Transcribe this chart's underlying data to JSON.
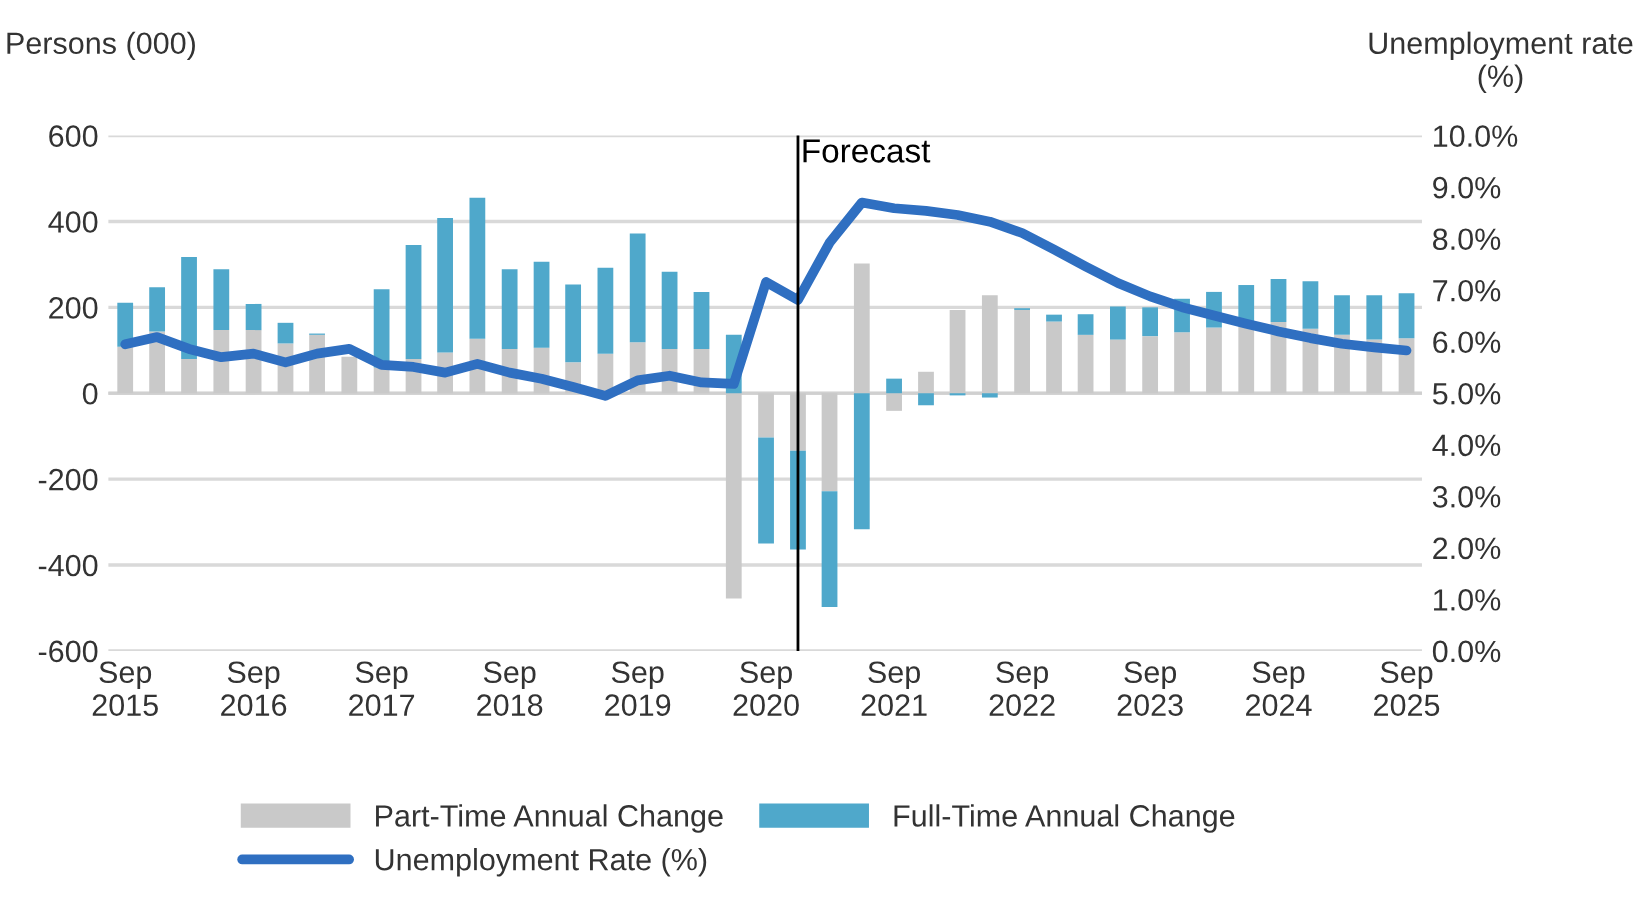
{
  "chart_data": {
    "type": "bar",
    "stacked": true,
    "x": [
      "2015-09",
      "2015-12",
      "2016-03",
      "2016-06",
      "2016-09",
      "2016-12",
      "2017-03",
      "2017-06",
      "2017-09",
      "2017-12",
      "2018-03",
      "2018-06",
      "2018-09",
      "2018-12",
      "2019-03",
      "2019-06",
      "2019-09",
      "2019-12",
      "2020-03",
      "2020-06",
      "2020-09",
      "2020-12",
      "2021-03",
      "2021-06",
      "2021-09",
      "2021-12",
      "2022-03",
      "2022-06",
      "2022-09",
      "2022-12",
      "2023-03",
      "2023-06",
      "2023-09",
      "2023-12",
      "2024-03",
      "2024-06",
      "2024-09",
      "2024-12",
      "2025-03",
      "2025-06",
      "2025-09"
    ],
    "series": [
      {
        "name": "Part-Time Annual Change",
        "color": "#c9c9c9",
        "values": [
          108,
          144,
          80,
          147,
          147,
          116,
          136,
          85,
          60,
          80,
          95,
          127,
          103,
          106,
          72,
          92,
          119,
          103,
          103,
          -478,
          -103,
          -134,
          -228,
          302,
          -41,
          50,
          194,
          228,
          194,
          167,
          136,
          125,
          133,
          142,
          153,
          163,
          166,
          150,
          136,
          125,
          128
        ]
      },
      {
        "name": "Full-Time Annual Change",
        "color": "#4fa8cb",
        "values": [
          103,
          103,
          237,
          142,
          61,
          48,
          3,
          null,
          182,
          265,
          313,
          328,
          186,
          200,
          181,
          200,
          253,
          180,
          133,
          136,
          -247,
          -230,
          -270,
          -317,
          34,
          -28,
          -5,
          -10,
          4,
          16,
          48,
          77,
          67,
          78,
          83,
          89,
          100,
          111,
          92,
          103,
          105
        ]
      },
      {
        "name": "Unemployment Rate (%)",
        "type": "line",
        "axis": "y2",
        "color": "#2f6fc1",
        "values": [
          5.95,
          6.09,
          5.86,
          5.7,
          5.77,
          5.6,
          5.77,
          5.86,
          5.55,
          5.51,
          5.4,
          5.57,
          5.4,
          5.28,
          5.12,
          4.95,
          5.25,
          5.34,
          5.21,
          5.18,
          7.16,
          6.81,
          7.92,
          8.7,
          8.59,
          8.54,
          8.46,
          8.33,
          8.11,
          7.79,
          7.46,
          7.14,
          6.88,
          6.67,
          6.51,
          6.35,
          6.2,
          6.07,
          5.96,
          5.89,
          5.83
        ]
      }
    ],
    "ylabel": "Persons (000)",
    "y2label": "Unemployment rate\n(%)",
    "xlim": [
      "2015-07-15",
      "2025-10-15"
    ],
    "xticks": [
      {
        "value": "2015-09",
        "label": "Sep\n2015"
      },
      {
        "value": "2016-09",
        "label": "Sep\n2016"
      },
      {
        "value": "2017-09",
        "label": "Sep\n2017"
      },
      {
        "value": "2018-09",
        "label": "Sep\n2018"
      },
      {
        "value": "2019-09",
        "label": "Sep\n2019"
      },
      {
        "value": "2020-09",
        "label": "Sep\n2020"
      },
      {
        "value": "2021-09",
        "label": "Sep\n2021"
      },
      {
        "value": "2022-09",
        "label": "Sep\n2022"
      },
      {
        "value": "2023-09",
        "label": "Sep\n2023"
      },
      {
        "value": "2024-09",
        "label": "Sep\n2024"
      },
      {
        "value": "2025-09",
        "label": "Sep\n2025"
      }
    ],
    "ylim": [
      -600,
      600
    ],
    "yticks": [
      -600,
      -400,
      -200,
      0,
      200,
      400,
      600
    ],
    "y2lim": [
      0,
      10
    ],
    "y2ticks": [
      {
        "value": 0,
        "label": "0.0%"
      },
      {
        "value": 1,
        "label": "1.0%"
      },
      {
        "value": 2,
        "label": "2.0%"
      },
      {
        "value": 3,
        "label": "3.0%"
      },
      {
        "value": 4,
        "label": "4.0%"
      },
      {
        "value": 5,
        "label": "5.0%"
      },
      {
        "value": 6,
        "label": "6.0%"
      },
      {
        "value": 7,
        "label": "7.0%"
      },
      {
        "value": 8,
        "label": "8.0%"
      },
      {
        "value": 9,
        "label": "9.0%"
      },
      {
        "value": 10,
        "label": "10.0%"
      }
    ],
    "ref_lines": [
      {
        "axis": "x",
        "value": "2020-12",
        "label": "Forecast",
        "color": "#000000"
      }
    ],
    "grid": "y",
    "legend": "bottom"
  }
}
